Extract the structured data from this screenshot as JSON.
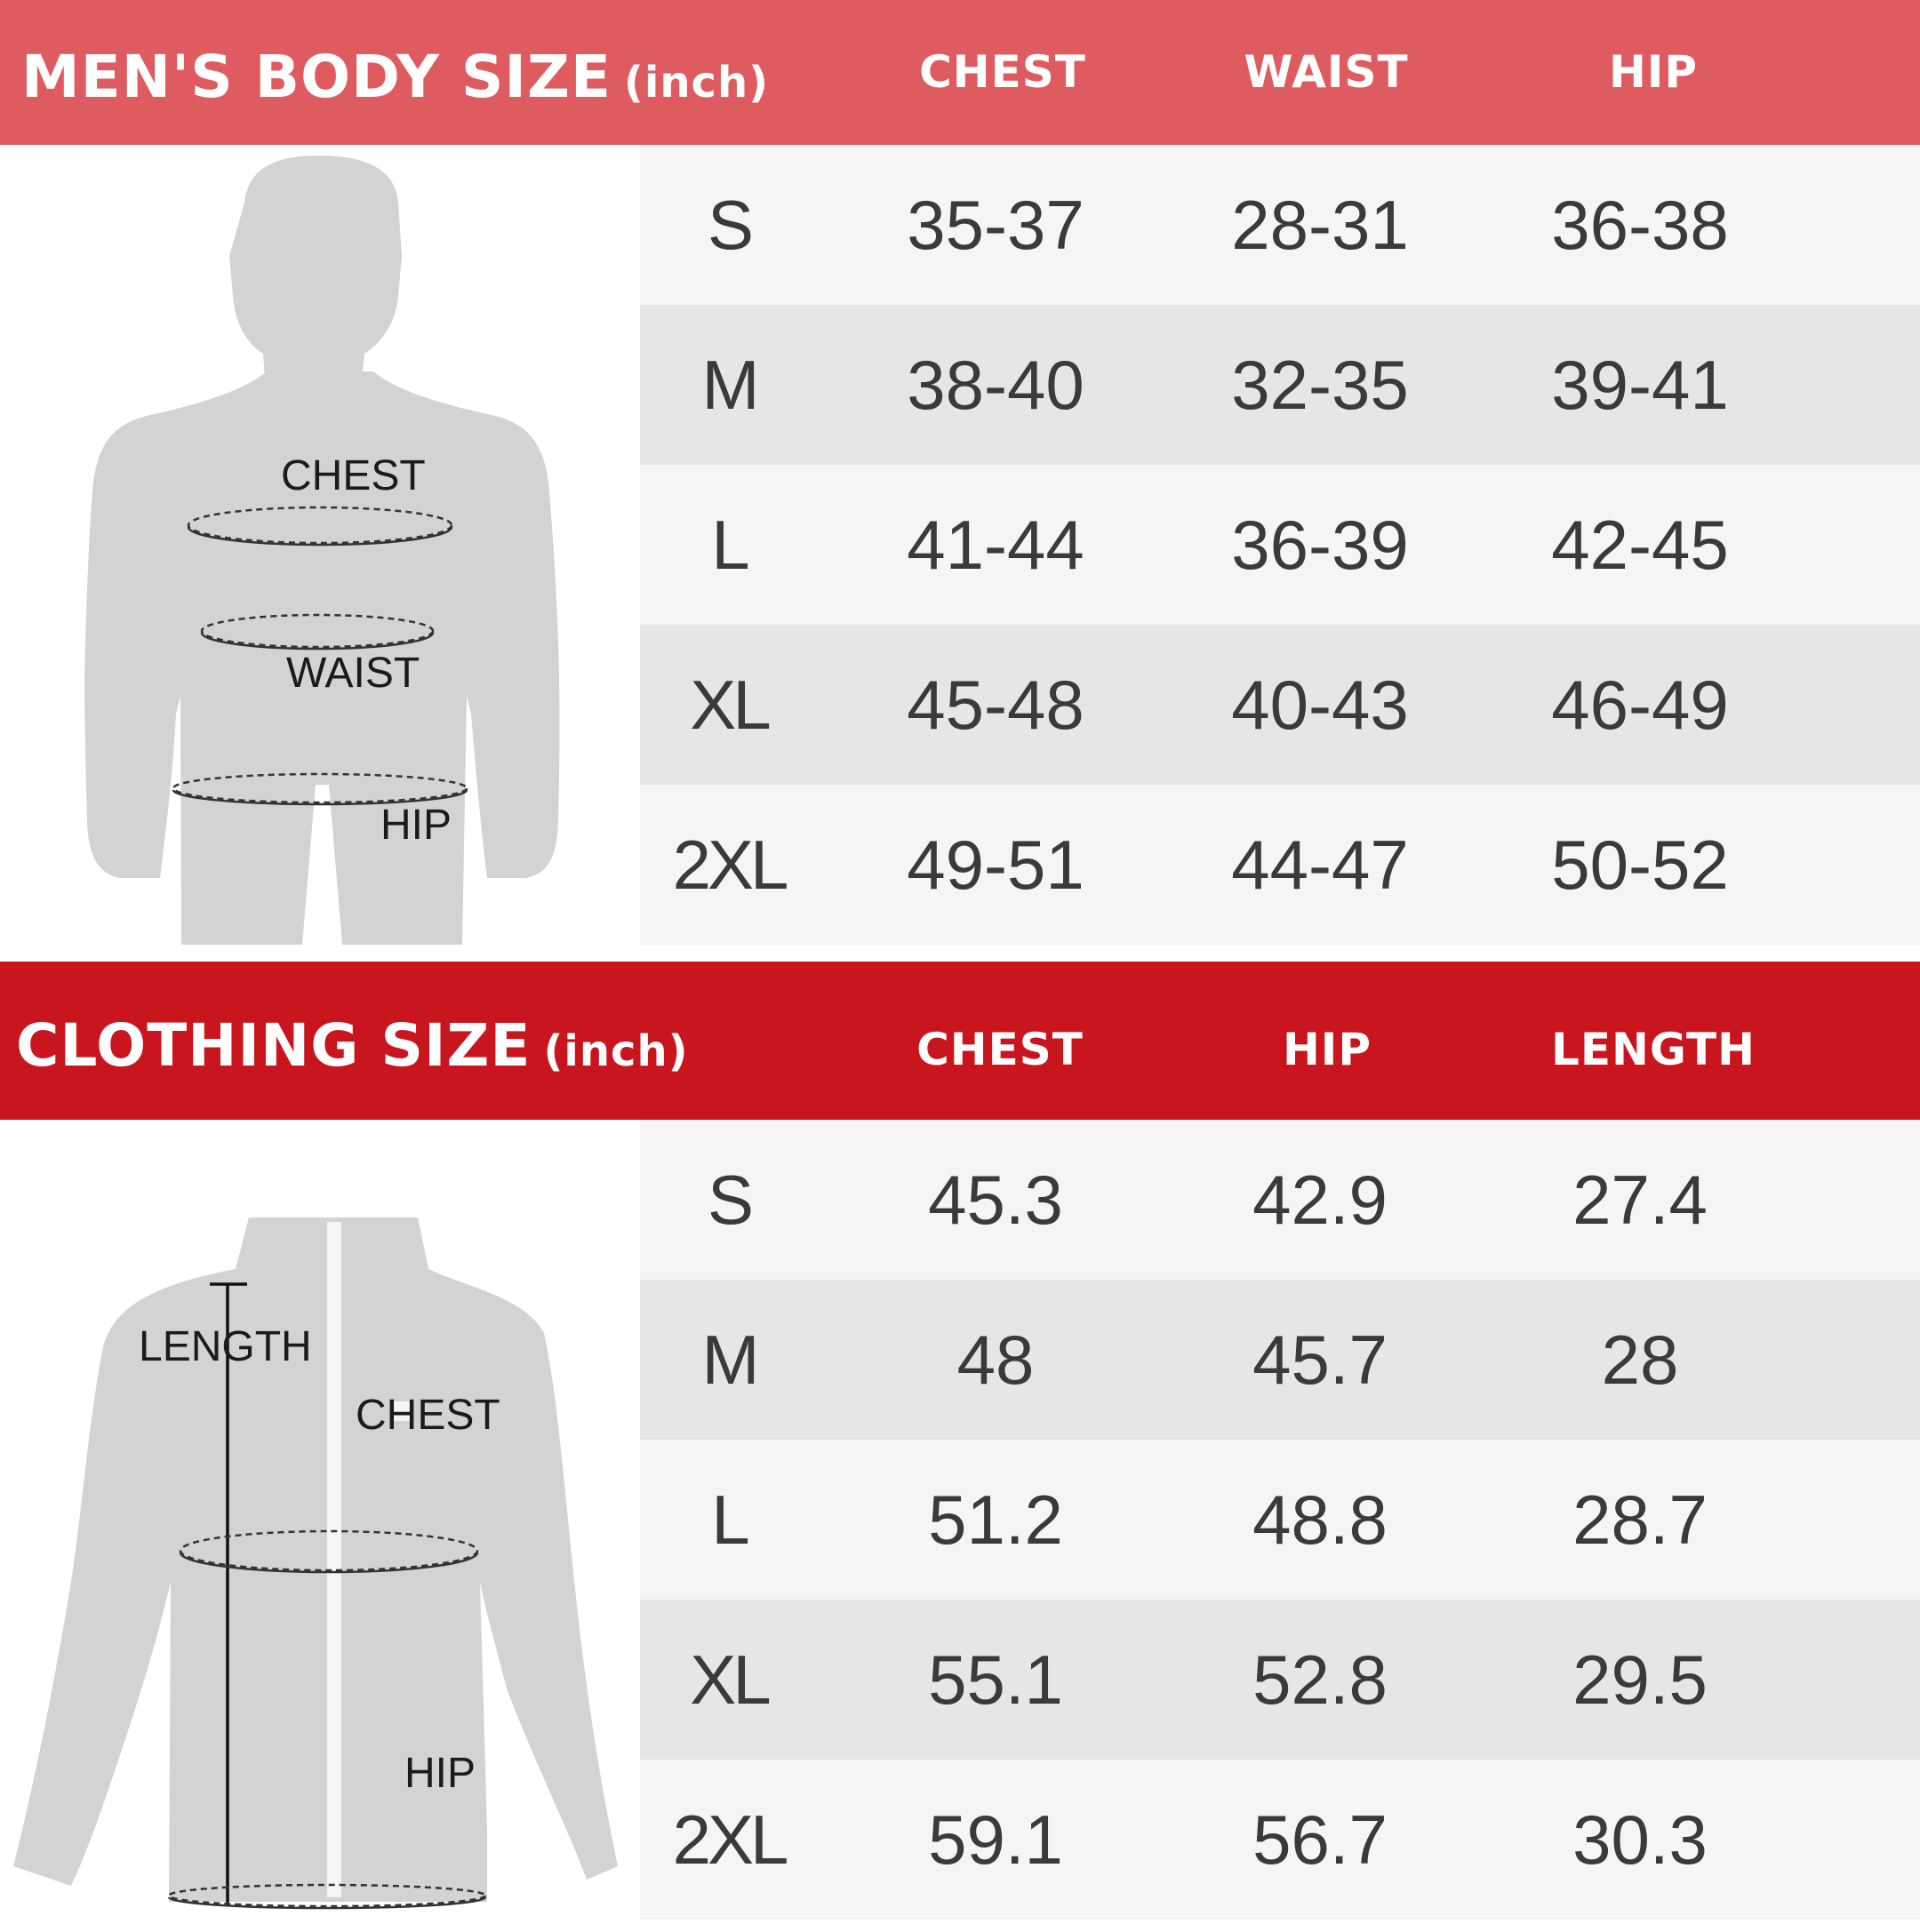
{
  "body_chart": {
    "title": "MEN'S BODY SIZE",
    "unit": "(inch)",
    "columns": [
      "CHEST",
      "WAIST",
      "HIP"
    ],
    "figure_labels": {
      "chest": "CHEST",
      "waist": "WAIST",
      "hip": "HIP"
    },
    "rows": [
      {
        "size": "S",
        "values": [
          "35-37",
          "28-31",
          "36-38"
        ]
      },
      {
        "size": "M",
        "values": [
          "38-40",
          "32-35",
          "39-41"
        ]
      },
      {
        "size": "L",
        "values": [
          "41-44",
          "36-39",
          "42-45"
        ]
      },
      {
        "size": "XL",
        "values": [
          "45-48",
          "40-43",
          "46-49"
        ]
      },
      {
        "size": "2XL",
        "values": [
          "49-51",
          "44-47",
          "50-52"
        ]
      }
    ]
  },
  "clothing_chart": {
    "title": "CLOTHING SIZE",
    "unit": "(inch)",
    "columns": [
      "CHEST",
      "HIP",
      "LENGTH"
    ],
    "figure_labels": {
      "length": "LENGTH",
      "chest": "CHEST",
      "hip": "HIP"
    },
    "rows": [
      {
        "size": "S",
        "values": [
          "45.3",
          "42.9",
          "27.4"
        ]
      },
      {
        "size": "M",
        "values": [
          "48",
          "45.7",
          "28"
        ]
      },
      {
        "size": "L",
        "values": [
          "51.2",
          "48.8",
          "28.7"
        ]
      },
      {
        "size": "XL",
        "values": [
          "55.1",
          "52.8",
          "29.5"
        ]
      },
      {
        "size": "2XL",
        "values": [
          "59.1",
          "56.7",
          "30.3"
        ]
      }
    ]
  },
  "colors": {
    "body_header": "#de5c60",
    "clothing_header": "#c9151e",
    "row_light": "#f6f4f5",
    "row_dark": "#e6e6e6",
    "figure_gray": "#d4d3d4"
  }
}
